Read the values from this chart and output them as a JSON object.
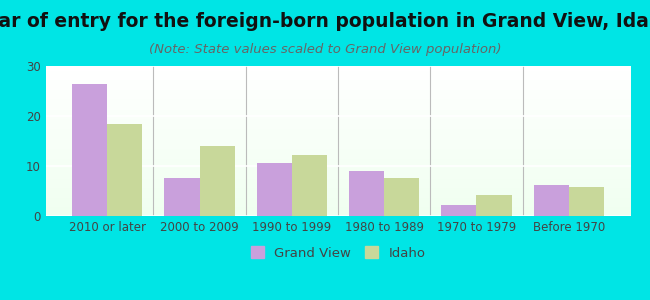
{
  "title": "Year of entry for the foreign-born population in Grand View, Idaho",
  "subtitle": "(Note: State values scaled to Grand View population)",
  "categories": [
    "2010 or later",
    "2000 to 2009",
    "1990 to 1999",
    "1980 to 1989",
    "1970 to 1979",
    "Before 1970"
  ],
  "grand_view": [
    26.5,
    7.7,
    10.7,
    9.0,
    2.2,
    6.3
  ],
  "idaho": [
    18.5,
    14.0,
    12.2,
    7.7,
    4.3,
    5.8
  ],
  "grand_view_color": "#c9a0dc",
  "idaho_color": "#c8d89a",
  "background_color": "#00e5e5",
  "plot_bg_top": "#f0fff0",
  "plot_bg_bottom": "#ffffff",
  "ylim": [
    0,
    30
  ],
  "yticks": [
    0,
    10,
    20,
    30
  ],
  "bar_width": 0.38,
  "title_fontsize": 13.5,
  "subtitle_fontsize": 9.5,
  "tick_fontsize": 8.5,
  "legend_fontsize": 9.5
}
